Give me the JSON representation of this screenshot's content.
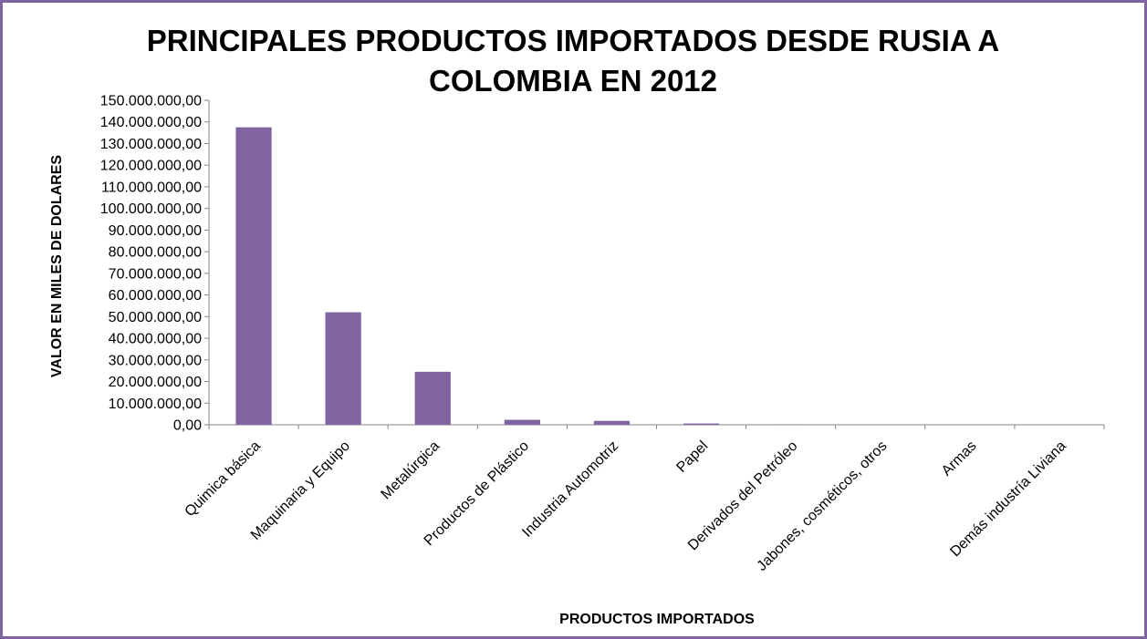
{
  "chart_data": {
    "type": "bar",
    "title_lines": [
      "PRINCIPALES PRODUCTOS IMPORTADOS DESDE RUSIA A",
      "COLOMBIA EN 2012"
    ],
    "xlabel": "PRODUCTOS IMPORTADOS",
    "ylabel": "VALOR EN MILES DE DOLARES",
    "ylim": [
      0,
      150000000
    ],
    "y_ticks": [
      0,
      10000000,
      20000000,
      30000000,
      40000000,
      50000000,
      60000000,
      70000000,
      80000000,
      90000000,
      100000000,
      110000000,
      120000000,
      130000000,
      140000000,
      150000000
    ],
    "y_tick_labels": [
      "0,00",
      "10.000.000,00",
      "20.000.000,00",
      "30.000.000,00",
      "40.000.000,00",
      "50.000.000,00",
      "60.000.000,00",
      "70.000.000,00",
      "80.000.000,00",
      "90.000.000,00",
      "100.000.000,00",
      "110.000.000,00",
      "120.000.000,00",
      "130.000.000,00",
      "140.000.000,00",
      "150.000.000,00"
    ],
    "categories": [
      "Quimica básica",
      "Maquinaria y Equipo",
      "Metalúrgica",
      "Productos de Plástico",
      "Industria Automotriz",
      "Papel",
      "Derivados del Petróleo",
      "Jabones, cosméticos, otros",
      "Armas",
      "Demás industría Liviana"
    ],
    "values": [
      137500000,
      52000000,
      24500000,
      2300000,
      1800000,
      600000,
      100000,
      50000,
      30000,
      20000
    ],
    "bar_color": "#8064a2",
    "grid": false,
    "legend": "none"
  }
}
